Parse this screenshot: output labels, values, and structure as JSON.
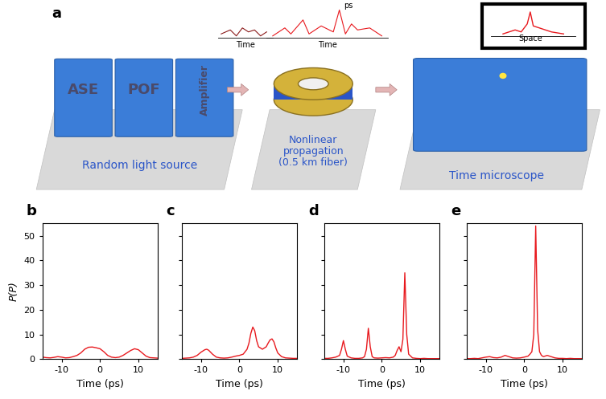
{
  "diagram": {
    "label": "a",
    "blocks": [
      "ASE",
      "POF",
      "Amplifier"
    ],
    "stages": [
      "Random light source",
      "Nonlinear\npropagation\n(0.5 km fiber)",
      "Time microscope"
    ],
    "annotations": {
      "trace_in": "Time",
      "trace_out": "Time",
      "width": "ps",
      "screen": "Space"
    }
  },
  "chart_data": [
    {
      "type": "line",
      "title": "b",
      "xlabel": "Time (ps)",
      "ylabel": "P(P)",
      "color": "#e8191e",
      "x": [
        -15,
        -14,
        -13,
        -12,
        -11,
        -10,
        -9,
        -8,
        -7,
        -6,
        -5,
        -4,
        -3,
        -2,
        -1,
        0,
        1,
        2,
        3,
        4,
        5,
        6,
        7,
        8,
        9,
        10,
        11,
        12,
        13,
        14,
        15
      ],
      "values": [
        0.8,
        0.6,
        0.5,
        0.7,
        1.0,
        0.8,
        0.5,
        0.6,
        1.0,
        1.5,
        2.5,
        4.0,
        4.8,
        4.9,
        4.6,
        4.2,
        3.0,
        1.5,
        0.8,
        0.6,
        0.8,
        1.5,
        2.5,
        3.5,
        4.2,
        3.8,
        2.5,
        1.2,
        0.6,
        0.5,
        0.4
      ],
      "xlim": [
        -15,
        15
      ],
      "ylim": [
        0,
        55
      ],
      "xticks": [
        -10,
        0,
        10
      ],
      "yticks": [
        0,
        10,
        20,
        30,
        40,
        50
      ]
    },
    {
      "type": "line",
      "title": "c",
      "xlabel": "Time (ps)",
      "color": "#e8191e",
      "tick_labels": "x",
      "x": [
        -15,
        -14,
        -13,
        -12,
        -11,
        -10,
        -9,
        -8.5,
        -8,
        -7,
        -6,
        -5,
        -4,
        -3,
        -2,
        -1,
        0,
        1,
        2,
        2.5,
        3,
        3.5,
        4,
        4.5,
        5,
        6,
        7,
        7.5,
        8,
        8.5,
        9,
        9.5,
        10,
        11,
        12,
        13,
        14,
        15
      ],
      "values": [
        0.3,
        0.4,
        0.5,
        0.8,
        1.5,
        2.8,
        3.8,
        4.0,
        3.6,
        2.0,
        0.8,
        0.5,
        0.4,
        0.5,
        0.8,
        1.2,
        1.5,
        2.0,
        4.0,
        6.5,
        10.5,
        13.0,
        11.5,
        7.5,
        5.0,
        4.0,
        5.0,
        6.5,
        7.8,
        8.2,
        7.0,
        4.5,
        2.5,
        1.0,
        0.5,
        0.4,
        0.3,
        0.3
      ],
      "xlim": [
        -15,
        15
      ],
      "ylim": [
        0,
        55
      ],
      "xticks": [
        -10,
        0,
        10
      ],
      "yticks": [
        0,
        10,
        20,
        30,
        40,
        50
      ]
    },
    {
      "type": "line",
      "title": "d",
      "xlabel": "Time (ps)",
      "color": "#e8191e",
      "tick_labels": "x",
      "x": [
        -15,
        -14,
        -13,
        -12,
        -11,
        -10.5,
        -10,
        -9.5,
        -9,
        -8,
        -7,
        -6,
        -5,
        -4.5,
        -4,
        -3.5,
        -3,
        -2.5,
        -2,
        -1,
        0,
        1,
        2,
        3,
        3.5,
        4,
        4.5,
        5,
        5.5,
        6,
        6.5,
        7,
        8,
        9,
        10,
        11,
        12,
        13,
        14,
        15
      ],
      "values": [
        0.3,
        0.3,
        0.5,
        0.8,
        1.5,
        4.0,
        7.5,
        4.0,
        1.2,
        0.5,
        0.3,
        0.3,
        0.5,
        1.0,
        4.0,
        12.5,
        5.0,
        1.0,
        0.5,
        0.4,
        0.5,
        0.6,
        0.5,
        0.8,
        1.5,
        3.5,
        5.0,
        3.0,
        8.0,
        35.0,
        10.0,
        2.0,
        0.5,
        0.3,
        0.2,
        0.3,
        0.2,
        0.2,
        0.2,
        0.2
      ],
      "xlim": [
        -15,
        15
      ],
      "ylim": [
        0,
        55
      ],
      "xticks": [
        -10,
        0,
        10
      ],
      "yticks": [
        0,
        10,
        20,
        30,
        40,
        50
      ]
    },
    {
      "type": "line",
      "title": "e",
      "xlabel": "Time (ps)",
      "color": "#e8191e",
      "tick_labels": "x",
      "x": [
        -15,
        -14,
        -13,
        -12,
        -11,
        -10,
        -9,
        -8,
        -7,
        -6,
        -5,
        -4,
        -3,
        -2,
        -1,
        0,
        1,
        1.5,
        2,
        2.5,
        3,
        3.5,
        4,
        4.5,
        5,
        6,
        7,
        8,
        9,
        10,
        11,
        12,
        13,
        14,
        15
      ],
      "values": [
        0.2,
        0.2,
        0.3,
        0.2,
        0.5,
        0.8,
        1.0,
        0.6,
        0.5,
        0.8,
        1.5,
        1.0,
        0.5,
        0.4,
        0.5,
        0.8,
        1.2,
        2.0,
        3.0,
        10.0,
        54.0,
        12.0,
        3.0,
        1.5,
        1.0,
        1.5,
        1.0,
        0.5,
        0.3,
        0.3,
        0.2,
        0.3,
        0.2,
        0.2,
        0.2
      ],
      "xlim": [
        -15,
        15
      ],
      "ylim": [
        0,
        55
      ],
      "xticks": [
        -10,
        0,
        10
      ],
      "yticks": [
        0,
        10,
        20,
        30,
        40,
        50
      ]
    }
  ]
}
